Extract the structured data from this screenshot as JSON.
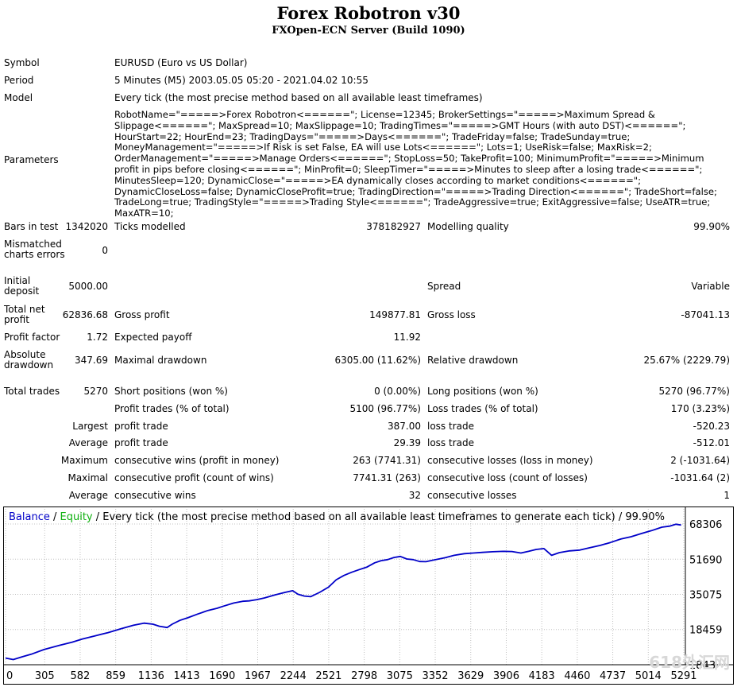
{
  "header": {
    "title": "Forex Robotron v30",
    "subtitle": "FXOpen-ECN Server (Build 1090)"
  },
  "info": {
    "symbol_label": "Symbol",
    "symbol_value": "EURUSD (Euro vs US Dollar)",
    "period_label": "Period",
    "period_value": "5 Minutes (M5) 2003.05.05 05:20 - 2021.04.02 10:55",
    "model_label": "Model",
    "model_value": "Every tick (the most precise method based on all available least timeframes)",
    "parameters_label": "Parameters",
    "parameters_value": "RobotName=\"=====>Forex Robotron<======\"; License=12345; BrokerSettings=\"=====>Maximum Spread & Slippage<======\"; MaxSpread=10; MaxSlippage=10; TradingTimes=\"=====>GMT Hours (with auto DST)<======\"; HourStart=22; HourEnd=23; TradingDays=\"=====>Days<======\"; TradeFriday=false; TradeSunday=true; MoneyManagement=\"=====>If Risk is set False, EA will use Lots<======\"; Lots=1; UseRisk=false; MaxRisk=2; OrderManagement=\"=====>Manage Orders<======\"; StopLoss=50; TakeProfit=100; MinimumProfit=\"=====>Minimum profit in pips before closing<======\"; MinProfit=0; SleepTimer=\"=====>Minutes to sleep after a losing trade<======\"; MinutesSleep=120; DynamicClose=\"=====>EA dynamically closes according to market conditions<======\"; DynamicCloseLoss=false; DynamicCloseProfit=true; TradingDirection=\"=====>Trading Direction<======\"; TradeShort=false; TradeLong=true; TradingStyle=\"=====>Trading Style<======\"; TradeAggressive=true; ExitAggressive=false; UseATR=true; MaxATR=10;"
  },
  "stats": {
    "bars_label": "Bars in test",
    "bars_value": "1342020",
    "ticks_label": "Ticks modelled",
    "ticks_value": "378182927",
    "quality_label": "Modelling quality",
    "quality_value": "99.90%",
    "mismatch_label": "Mismatched charts errors",
    "mismatch_value": "0",
    "deposit_label": "Initial deposit",
    "deposit_value": "5000.00",
    "spread_label": "Spread",
    "spread_value": "Variable",
    "netprofit_label": "Total net profit",
    "netprofit_value": "62836.68",
    "grossprofit_label": "Gross profit",
    "grossprofit_value": "149877.81",
    "grossloss_label": "Gross loss",
    "grossloss_value": "-87041.13",
    "pf_label": "Profit factor",
    "pf_value": "1.72",
    "payoff_label": "Expected payoff",
    "payoff_value": "11.92",
    "absdd_label": "Absolute drawdown",
    "absdd_value": "347.69",
    "maxdd_label": "Maximal drawdown",
    "maxdd_value": "6305.00 (11.62%)",
    "reldd_label": "Relative drawdown",
    "reldd_value": "25.67% (2229.79)",
    "trades_label": "Total trades",
    "trades_value": "5270",
    "short_label": "Short positions (won %)",
    "short_value": "0 (0.00%)",
    "long_label": "Long positions (won %)",
    "long_value": "5270 (96.77%)",
    "pt_label": "Profit trades (% of total)",
    "pt_value": "5100 (96.77%)",
    "lt_label": "Loss trades (% of total)",
    "lt_value": "170 (3.23%)",
    "largest_label": "Largest",
    "largest_profit_label": "profit trade",
    "largest_profit_value": "387.00",
    "largest_loss_label": "loss trade",
    "largest_loss_value": "-520.23",
    "average_label": "Average",
    "average_profit_label": "profit trade",
    "average_profit_value": "29.39",
    "average_loss_label": "loss trade",
    "average_loss_value": "-512.01",
    "maximum_label": "Maximum",
    "max_wins_label": "consecutive wins (profit in money)",
    "max_wins_value": "263 (7741.31)",
    "max_losses_label": "consecutive losses (loss in money)",
    "max_losses_value": "2 (-1031.64)",
    "maximal_label": "Maximal",
    "maximal_profit_label": "consecutive profit (count of wins)",
    "maximal_profit_value": "7741.31 (263)",
    "maximal_loss_label": "consecutive loss (count of losses)",
    "maximal_loss_value": "-1031.64 (2)",
    "avg_label": "Average",
    "avg_wins_label": "consecutive wins",
    "avg_wins_value": "32",
    "avg_losses_label": "consecutive losses",
    "avg_losses_value": "1"
  },
  "chart_data": {
    "type": "line",
    "legend_balance": "Balance",
    "legend_sep1": " / ",
    "legend_equity": "Equity",
    "legend_rest": " / Every tick (the most precise method based on all available least timeframes to generate each tick) / 99.90%",
    "colors": {
      "balance": "#0000c8",
      "equity": "#10b010",
      "grid": "#c0c0c0"
    },
    "ylim": [
      1843,
      70000
    ],
    "xlim": [
      0,
      5270
    ],
    "y_ticks": [
      68306,
      51690,
      35075,
      18459,
      1843
    ],
    "x_ticks": [
      0,
      305,
      582,
      859,
      1136,
      1413,
      1690,
      1967,
      2244,
      2521,
      2798,
      3075,
      3352,
      3629,
      3906,
      4183,
      4460,
      4737,
      5014,
      5291
    ],
    "series": [
      {
        "name": "Balance",
        "x": [
          0,
          60,
          130,
          200,
          300,
          420,
          520,
          600,
          700,
          800,
          900,
          1000,
          1080,
          1150,
          1200,
          1260,
          1300,
          1360,
          1420,
          1500,
          1580,
          1650,
          1700,
          1780,
          1850,
          1900,
          1960,
          2020,
          2100,
          2180,
          2240,
          2280,
          2330,
          2380,
          2450,
          2520,
          2580,
          2640,
          2700,
          2760,
          2820,
          2880,
          2930,
          2980,
          3030,
          3080,
          3130,
          3180,
          3230,
          3280,
          3330,
          3380,
          3430,
          3500,
          3580,
          3650,
          3720,
          3800,
          3880,
          3950,
          4020,
          4080,
          4140,
          4200,
          4260,
          4320,
          4400,
          4480,
          4560,
          4640,
          4720,
          4800,
          4880,
          4960,
          5040,
          5120,
          5180,
          5230,
          5270
        ],
        "values": [
          5000,
          4300,
          5600,
          6800,
          9000,
          11000,
          12500,
          14000,
          15500,
          17000,
          18800,
          20500,
          21500,
          21000,
          20000,
          19400,
          21000,
          22800,
          24000,
          25800,
          27500,
          28500,
          29500,
          31000,
          31800,
          32000,
          32600,
          33400,
          34800,
          36000,
          36800,
          35200,
          34300,
          34000,
          36000,
          38500,
          42000,
          44000,
          45500,
          46800,
          48000,
          50000,
          51000,
          51500,
          52500,
          53000,
          51800,
          51500,
          50600,
          50500,
          51200,
          51800,
          52400,
          53500,
          54300,
          54600,
          54900,
          55200,
          55400,
          55300,
          54600,
          55400,
          56300,
          56700,
          53500,
          54800,
          55600,
          56000,
          57100,
          58200,
          59600,
          61200,
          62300,
          63800,
          65200,
          66800,
          67300,
          68200,
          67836
        ]
      }
    ]
  },
  "watermark": "618外汇网"
}
